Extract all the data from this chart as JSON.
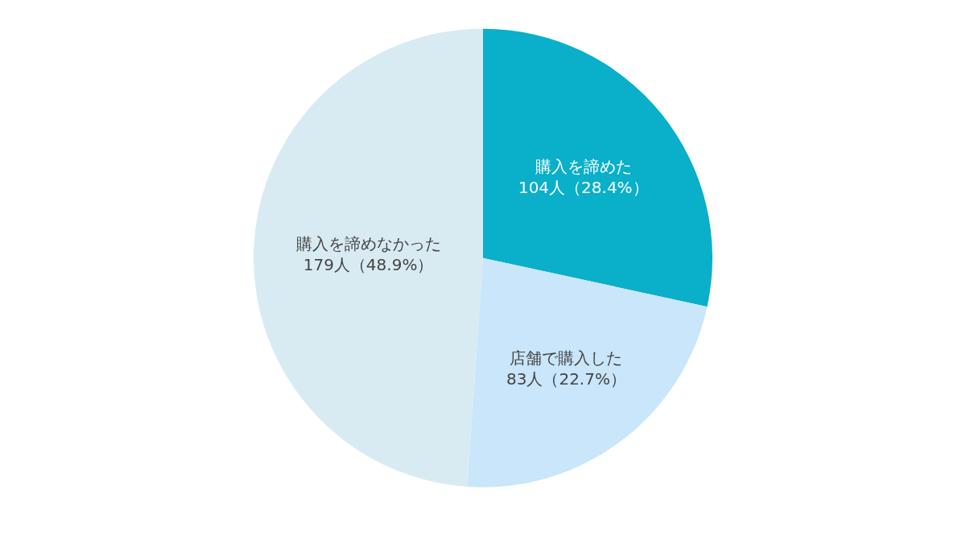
{
  "chart_data": {
    "type": "pie",
    "categories": [
      "購入を諦めた",
      "店舗で購入した",
      "購入を諦めなかった"
    ],
    "values": [
      104,
      83,
      179
    ],
    "value_labels": [
      "104人（28.4%）",
      "83人（22.7%）",
      "179人（48.9%）"
    ],
    "colors": [
      "#0aafc9",
      "#c9e6fa",
      "#d9ebf2"
    ],
    "legend": false
  }
}
